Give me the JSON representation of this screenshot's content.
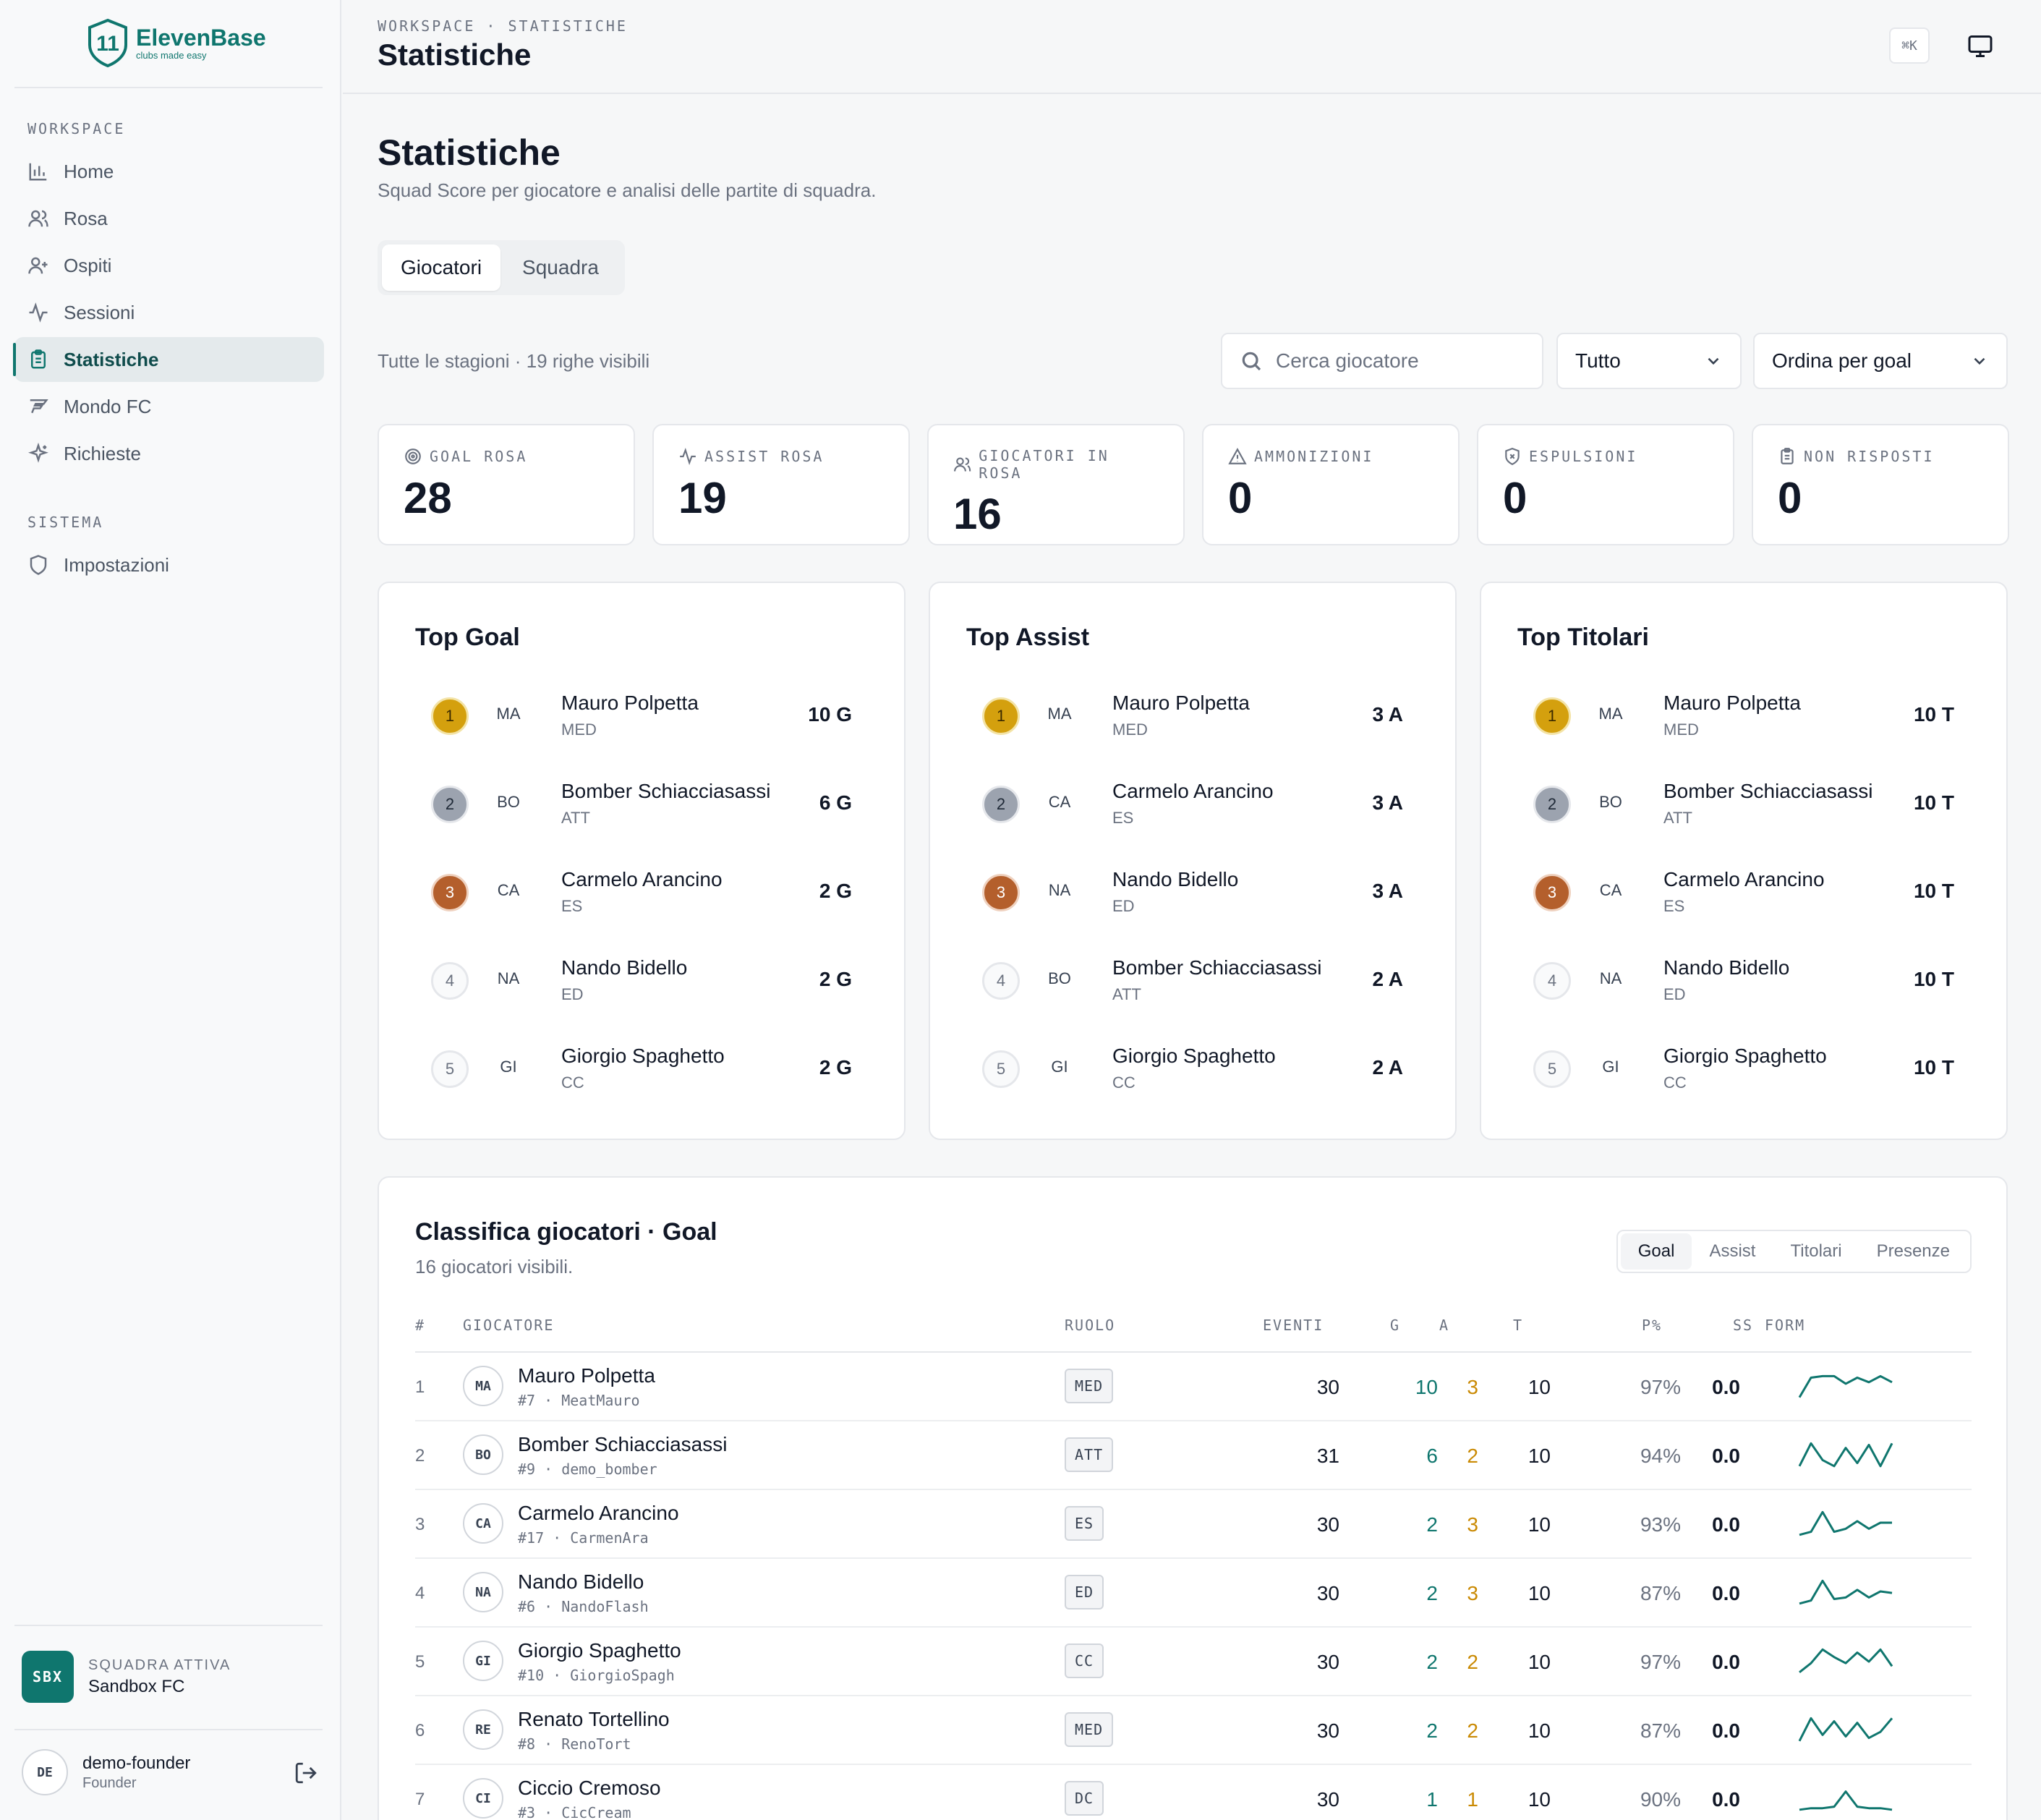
{
  "app": {
    "name": "ElevenBase",
    "tagline": "clubs made easy",
    "logo_mark": "11"
  },
  "sidebar": {
    "section_workspace": "WORKSPACE",
    "section_system": "SISTEMA",
    "items": [
      {
        "label": "Home",
        "icon": "chart-bars-icon"
      },
      {
        "label": "Rosa",
        "icon": "users-icon"
      },
      {
        "label": "Ospiti",
        "icon": "user-plus-icon"
      },
      {
        "label": "Sessioni",
        "icon": "activity-icon"
      },
      {
        "label": "Statistiche",
        "icon": "clipboard-icon",
        "active": true
      },
      {
        "label": "Mondo FC",
        "icon": "fc-logo-icon"
      },
      {
        "label": "Richieste",
        "icon": "sparkles-icon"
      }
    ],
    "system_items": [
      {
        "label": "Impostazioni",
        "icon": "shield-icon"
      }
    ],
    "team": {
      "badge": "SBX",
      "label": "SQUADRA ATTIVA",
      "name": "Sandbox FC"
    },
    "user": {
      "initials": "DE",
      "name": "demo-founder",
      "role": "Founder"
    }
  },
  "topbar": {
    "breadcrumb": "WORKSPACE · STATISTICHE",
    "title": "Statistiche",
    "shortcut": "⌘K"
  },
  "page": {
    "title": "Statistiche",
    "subtitle": "Squad Score per giocatore e analisi delle partite di squadra.",
    "tabs": [
      {
        "label": "Giocatori",
        "active": true
      },
      {
        "label": "Squadra"
      }
    ],
    "filter_info": "Tutte le stagioni · 19 righe visibili",
    "search_placeholder": "Cerca giocatore",
    "filter_select": "Tutto",
    "sort_select": "Ordina per goal"
  },
  "stats": [
    {
      "label": "GOAL ROSA",
      "value": "28",
      "icon": "target-icon"
    },
    {
      "label": "ASSIST ROSA",
      "value": "19",
      "icon": "activity-icon"
    },
    {
      "label": "GIOCATORI IN ROSA",
      "value": "16",
      "icon": "users-icon"
    },
    {
      "label": "AMMONIZIONI",
      "value": "0",
      "icon": "warning-icon"
    },
    {
      "label": "ESPULSIONI",
      "value": "0",
      "icon": "shield-x-icon"
    },
    {
      "label": "NON RISPOSTI",
      "value": "0",
      "icon": "clipboard-icon"
    }
  ],
  "top_lists": [
    {
      "title": "Top Goal",
      "rows": [
        {
          "rank": "1",
          "init": "MA",
          "name": "Mauro Polpetta",
          "role": "MED",
          "value": "10 G"
        },
        {
          "rank": "2",
          "init": "BO",
          "name": "Bomber Schiacciasassi",
          "role": "ATT",
          "value": "6 G"
        },
        {
          "rank": "3",
          "init": "CA",
          "name": "Carmelo Arancino",
          "role": "ES",
          "value": "2 G"
        },
        {
          "rank": "4",
          "init": "NA",
          "name": "Nando Bidello",
          "role": "ED",
          "value": "2 G"
        },
        {
          "rank": "5",
          "init": "GI",
          "name": "Giorgio Spaghetto",
          "role": "CC",
          "value": "2 G"
        }
      ]
    },
    {
      "title": "Top Assist",
      "rows": [
        {
          "rank": "1",
          "init": "MA",
          "name": "Mauro Polpetta",
          "role": "MED",
          "value": "3 A"
        },
        {
          "rank": "2",
          "init": "CA",
          "name": "Carmelo Arancino",
          "role": "ES",
          "value": "3 A"
        },
        {
          "rank": "3",
          "init": "NA",
          "name": "Nando Bidello",
          "role": "ED",
          "value": "3 A"
        },
        {
          "rank": "4",
          "init": "BO",
          "name": "Bomber Schiacciasassi",
          "role": "ATT",
          "value": "2 A"
        },
        {
          "rank": "5",
          "init": "GI",
          "name": "Giorgio Spaghetto",
          "role": "CC",
          "value": "2 A"
        }
      ]
    },
    {
      "title": "Top Titolari",
      "rows": [
        {
          "rank": "1",
          "init": "MA",
          "name": "Mauro Polpetta",
          "role": "MED",
          "value": "10 T"
        },
        {
          "rank": "2",
          "init": "BO",
          "name": "Bomber Schiacciasassi",
          "role": "ATT",
          "value": "10 T"
        },
        {
          "rank": "3",
          "init": "CA",
          "name": "Carmelo Arancino",
          "role": "ES",
          "value": "10 T"
        },
        {
          "rank": "4",
          "init": "NA",
          "name": "Nando Bidello",
          "role": "ED",
          "value": "10 T"
        },
        {
          "rank": "5",
          "init": "GI",
          "name": "Giorgio Spaghetto",
          "role": "CC",
          "value": "10 T"
        }
      ]
    }
  ],
  "ranking": {
    "title": "Classifica giocatori · Goal",
    "subtitle": "16 giocatori visibili.",
    "tabs": [
      {
        "label": "Goal",
        "active": true
      },
      {
        "label": "Assist"
      },
      {
        "label": "Titolari"
      },
      {
        "label": "Presenze"
      }
    ],
    "headers": {
      "idx": "#",
      "player": "GIOCATORE",
      "role": "RUOLO",
      "events": "EVENTI",
      "g": "G",
      "a": "A",
      "t": "T",
      "pct": "P%",
      "ss": "SS",
      "form": "FORM"
    },
    "rows": [
      {
        "idx": "1",
        "init": "MA",
        "name": "Mauro Polpetta",
        "meta": "#7 · MeatMauro",
        "role": "MED",
        "events": "30",
        "g": "10",
        "a": "3",
        "t": "10",
        "pct": "97%",
        "ss": "0.0",
        "form": [
          0.1,
          0.75,
          0.8,
          0.8,
          0.55,
          0.75,
          0.6,
          0.8,
          0.6
        ]
      },
      {
        "idx": "2",
        "init": "BO",
        "name": "Bomber Schiacciasassi",
        "meta": "#9 · demo_bomber",
        "role": "ATT",
        "events": "31",
        "g": "6",
        "a": "2",
        "t": "10",
        "pct": "94%",
        "ss": "0.0",
        "form": [
          0.1,
          0.85,
          0.3,
          0.1,
          0.7,
          0.2,
          0.8,
          0.1,
          0.85
        ]
      },
      {
        "idx": "3",
        "init": "CA",
        "name": "Carmelo Arancino",
        "meta": "#17 · CarmenAra",
        "role": "ES",
        "events": "30",
        "g": "2",
        "a": "3",
        "t": "10",
        "pct": "93%",
        "ss": "0.0",
        "form": [
          0.1,
          0.2,
          0.85,
          0.2,
          0.3,
          0.55,
          0.3,
          0.5,
          0.5
        ]
      },
      {
        "idx": "4",
        "init": "NA",
        "name": "Nando Bidello",
        "meta": "#6 · NandoFlash",
        "role": "ED",
        "events": "30",
        "g": "2",
        "a": "3",
        "t": "10",
        "pct": "87%",
        "ss": "0.0",
        "form": [
          0.1,
          0.2,
          0.85,
          0.25,
          0.3,
          0.55,
          0.3,
          0.5,
          0.45
        ]
      },
      {
        "idx": "5",
        "init": "GI",
        "name": "Giorgio Spaghetto",
        "meta": "#10 · GiorgioSpagh",
        "role": "CC",
        "events": "30",
        "g": "2",
        "a": "2",
        "t": "10",
        "pct": "97%",
        "ss": "0.0",
        "form": [
          0.1,
          0.4,
          0.85,
          0.6,
          0.4,
          0.75,
          0.45,
          0.85,
          0.3
        ]
      },
      {
        "idx": "6",
        "init": "RE",
        "name": "Renato Tortellino",
        "meta": "#8 · RenoTort",
        "role": "MED",
        "events": "30",
        "g": "2",
        "a": "2",
        "t": "10",
        "pct": "87%",
        "ss": "0.0",
        "form": [
          0.1,
          0.85,
          0.3,
          0.75,
          0.25,
          0.7,
          0.2,
          0.4,
          0.85
        ]
      },
      {
        "idx": "7",
        "init": "CI",
        "name": "Ciccio Cremoso",
        "meta": "#3 · CicCream",
        "role": "DC",
        "events": "30",
        "g": "1",
        "a": "1",
        "t": "10",
        "pct": "90%",
        "ss": "0.0",
        "form": [
          0.1,
          0.15,
          0.15,
          0.2,
          0.7,
          0.2,
          0.15,
          0.15,
          0.1
        ]
      }
    ]
  },
  "colors": {
    "accent": "#0f766e",
    "gold": "#d4a00e",
    "silver": "#9ca3af",
    "bronze": "#b45f2c",
    "assist": "#ca8a04"
  }
}
